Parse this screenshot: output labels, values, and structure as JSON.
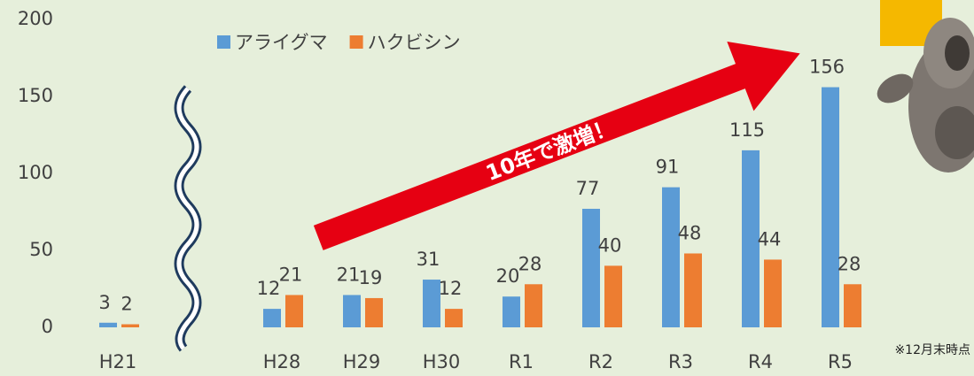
{
  "chart_data": {
    "type": "bar",
    "categories": [
      "H21",
      "H28",
      "H29",
      "H30",
      "R1",
      "R2",
      "R3",
      "R4",
      "R5"
    ],
    "series": [
      {
        "name": "アライグマ",
        "color": "#5b9bd5",
        "values": [
          3,
          12,
          21,
          31,
          20,
          77,
          91,
          115,
          156
        ]
      },
      {
        "name": "ハクビシン",
        "color": "#ed7d31",
        "values": [
          2,
          21,
          19,
          12,
          28,
          40,
          48,
          44,
          28
        ]
      }
    ],
    "ylim": [
      0,
      200
    ],
    "yticks": [
      0,
      50,
      100,
      150,
      200
    ],
    "grid": false,
    "legend": "top",
    "annotations": [
      "10年で激増！",
      "※12月末時点"
    ]
  }
}
